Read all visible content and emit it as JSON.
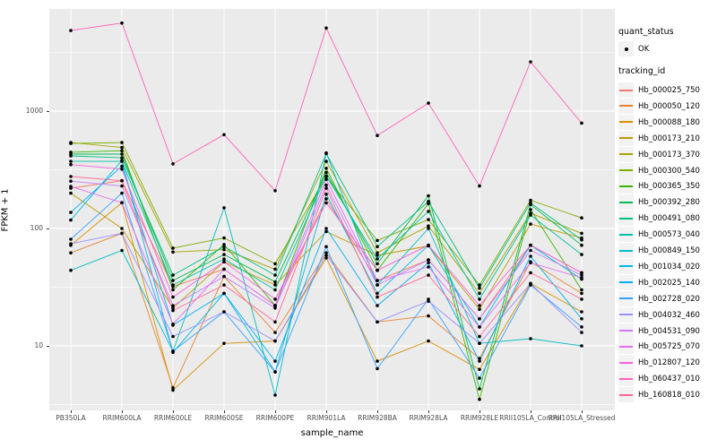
{
  "chart_data": {
    "type": "line",
    "title": "",
    "xlabel": "sample_name",
    "ylabel": "FPKM + 1",
    "y_scale": "log10",
    "ylim": [
      2.8,
      7400
    ],
    "grid": "on",
    "panel_bg": "#EBEBEB",
    "grid_color": "#FFFFFF",
    "marker_color": "#000000",
    "y_major_ticks": [
      10,
      100,
      1000
    ],
    "y_minor_gridlines": [
      3.16,
      31.6,
      316,
      3162
    ],
    "categories": [
      "PB350LA",
      "RRIM600LA",
      "RRIM600LE",
      "RRIM600SE",
      "RRIM600PE",
      "RRIM901LA",
      "RRIM928BA",
      "RRIM928LA",
      "RRIM928LE",
      "RRII105LA_Control",
      "RRII105LA_Stressed"
    ],
    "legend": {
      "position": "right",
      "quant_title": "quant_status",
      "quant_items": [
        {
          "label": "OK",
          "marker": "point",
          "color": "#000000"
        }
      ],
      "series_title": "tracking_id"
    },
    "series": [
      {
        "name": "Hb_000025_750",
        "color": "#F8766D",
        "values": [
          220,
          255,
          32,
          45,
          22,
          179,
          36,
          54,
          17,
          72,
          42
        ]
      },
      {
        "name": "Hb_000050_120",
        "color": "#EA8331",
        "values": [
          62,
          91,
          4.4,
          39,
          13,
          62,
          16,
          18,
          7.8,
          52,
          28
        ]
      },
      {
        "name": "Hb_000088_180",
        "color": "#D89000",
        "values": [
          72,
          166,
          4.2,
          10.5,
          11,
          56,
          7.4,
          11,
          6.3,
          34,
          19.5
        ]
      },
      {
        "name": "Hb_000173_210",
        "color": "#C09B00",
        "values": [
          200,
          100,
          21,
          52,
          33,
          94,
          59,
          71,
          20.5,
          109,
          83
        ]
      },
      {
        "name": "Hb_000173_370",
        "color": "#A3A500",
        "values": [
          540,
          490,
          63,
          66,
          45,
          373,
          62,
          105,
          28,
          135,
          91
        ]
      },
      {
        "name": "Hb_000300_540",
        "color": "#7CAE00",
        "values": [
          530,
          540,
          68,
          83,
          50,
          275,
          79,
          119,
          33,
          174,
          123
        ]
      },
      {
        "name": "Hb_000365_350",
        "color": "#39B600",
        "values": [
          446,
          460,
          30,
          73,
          22,
          326,
          44,
          163,
          3.5,
          145,
          30
        ]
      },
      {
        "name": "Hb_000392_280",
        "color": "#00BB4E",
        "values": [
          430,
          430,
          36,
          60,
          35,
          300,
          50,
          190,
          4.3,
          160,
          72
        ]
      },
      {
        "name": "Hb_000491_080",
        "color": "#00BF7D",
        "values": [
          415,
          400,
          40,
          70,
          40,
          434,
          70,
          170,
          31,
          165,
          80
        ]
      },
      {
        "name": "Hb_000573_040",
        "color": "#00C1A3",
        "values": [
          373,
          373,
          33,
          55,
          30,
          280,
          55,
          140,
          25,
          130,
          60
        ]
      },
      {
        "name": "Hb_000849_150",
        "color": "#00BFC4",
        "values": [
          44,
          65,
          9,
          150,
          3.8,
          440,
          33,
          100,
          10.5,
          11.5,
          10
        ]
      },
      {
        "name": "Hb_001034_020",
        "color": "#00BAE0",
        "values": [
          118,
          380,
          8.8,
          28,
          6,
          196,
          28,
          72,
          14.5,
          72,
          37
        ]
      },
      {
        "name": "Hb_002025_140",
        "color": "#00B0F6",
        "values": [
          137,
          340,
          15,
          28,
          7.4,
          100,
          22,
          51,
          7.4,
          58,
          17
        ]
      },
      {
        "name": "Hb_002728_020",
        "color": "#35A2FF",
        "values": [
          81,
          200,
          9,
          19.5,
          6,
          70,
          6.4,
          25,
          5.3,
          33,
          14.5
        ]
      },
      {
        "name": "Hb_004032_460",
        "color": "#9590FF",
        "values": [
          74,
          91,
          12,
          19.5,
          11,
          59,
          16,
          24,
          10.5,
          34,
          13
        ]
      },
      {
        "name": "Hb_004531_090",
        "color": "#C77CFF",
        "values": [
          253,
          230,
          22,
          39,
          21,
          234,
          33,
          54,
          17,
          65,
          40
        ]
      },
      {
        "name": "Hb_005725_070",
        "color": "#E76BF3",
        "values": [
          228,
          166,
          15.3,
          45,
          22,
          262,
          36,
          47,
          14.5,
          51,
          38
        ]
      },
      {
        "name": "Hb_012807_120",
        "color": "#FA62DB",
        "values": [
          350,
          320,
          26,
          52,
          25,
          165,
          44,
          72,
          22,
          72,
          42
        ]
      },
      {
        "name": "Hb_060437_010",
        "color": "#FF62BC",
        "values": [
          4860,
          5630,
          355,
          630,
          210,
          5100,
          620,
          1170,
          230,
          2630,
          790
        ]
      },
      {
        "name": "Hb_160818_010",
        "color": "#FF6A98",
        "values": [
          277,
          255,
          20,
          33,
          16,
          220,
          26,
          40,
          12,
          42,
          25
        ]
      }
    ]
  }
}
